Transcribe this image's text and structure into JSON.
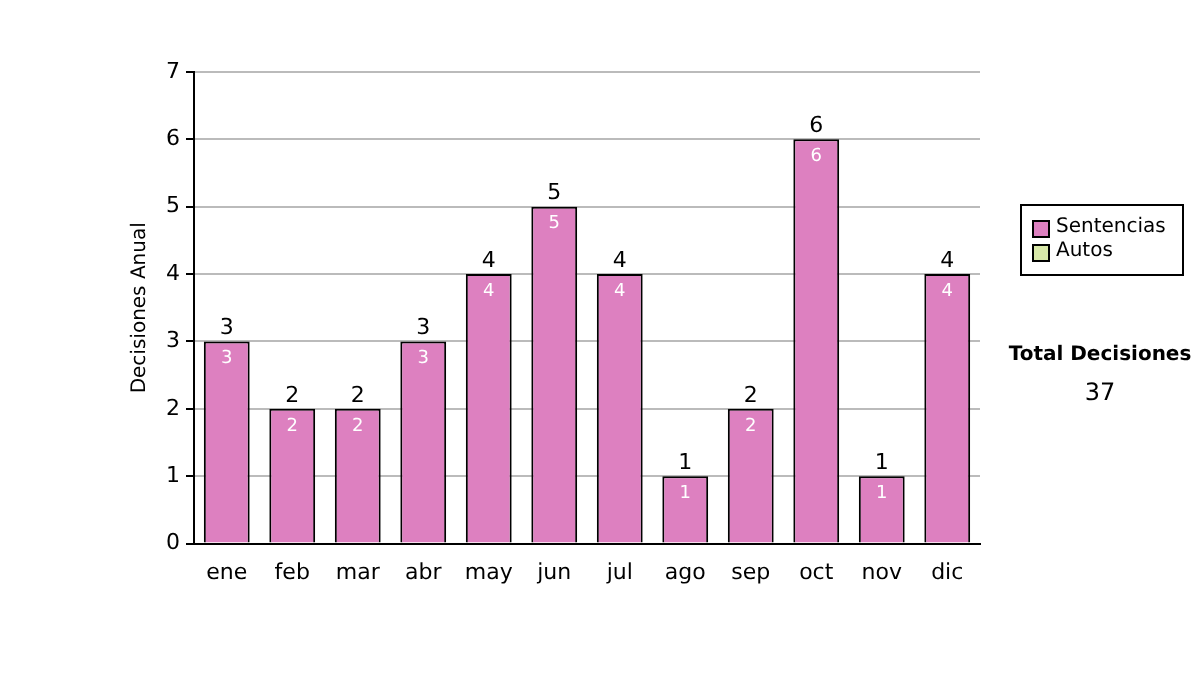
{
  "chart_data": {
    "type": "bar",
    "ylabel": "Decisiones Anual",
    "categories": [
      "ene",
      "feb",
      "mar",
      "abr",
      "may",
      "jun",
      "jul",
      "ago",
      "sep",
      "oct",
      "nov",
      "dic"
    ],
    "series": [
      {
        "name": "Sentencias",
        "color": "#dd80c0",
        "values": [
          3,
          2,
          2,
          3,
          4,
          5,
          4,
          1,
          2,
          6,
          1,
          4
        ],
        "value_labels": [
          "3",
          "2",
          "2",
          "3",
          "4",
          "5",
          "4",
          "1",
          "2",
          "6",
          "1",
          "4"
        ]
      },
      {
        "name": "Autos",
        "color": "#d8e8a8",
        "values": [
          0,
          0,
          0,
          0,
          0,
          0,
          0,
          0,
          0,
          0,
          0,
          0
        ]
      }
    ],
    "stacked": true,
    "totals": [
      "3",
      "2",
      "2",
      "3",
      "4",
      "5",
      "4",
      "1",
      "2",
      "6",
      "1",
      "4"
    ],
    "ylim": [
      0,
      7
    ],
    "yticks": [
      0,
      1,
      2,
      3,
      4,
      5,
      6,
      7
    ],
    "grid": "y",
    "legend": "right",
    "annotations": [
      "Total Decisiones",
      "37"
    ]
  }
}
